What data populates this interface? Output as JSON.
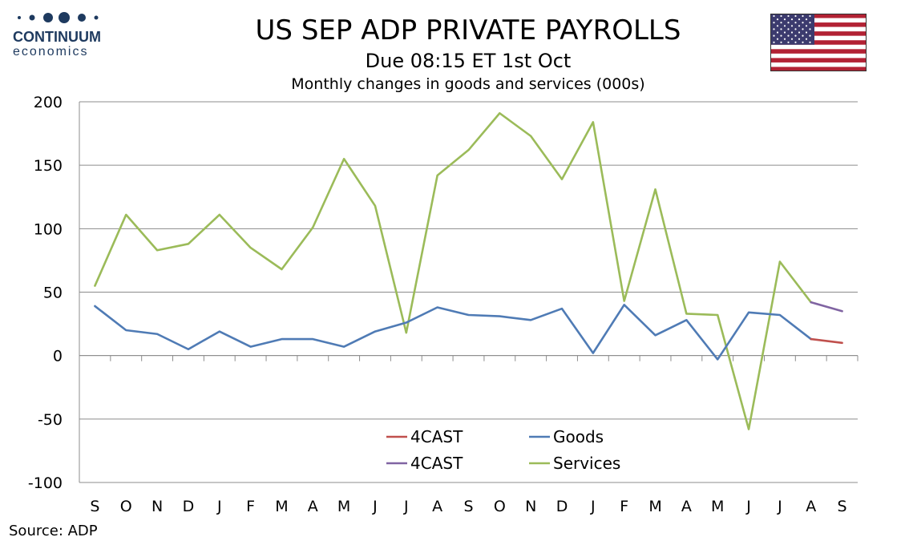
{
  "logo": {
    "brand": "CONTINUUM",
    "sub": "economics",
    "color": "#1e3a5f"
  },
  "header": {
    "title": "US SEP ADP PRIVATE PAYROLLS",
    "subtitle": "Due 08:15 ET 1st Oct",
    "subtitle2": "Monthly changes in goods and services (000s)"
  },
  "flag": {
    "icon": "us-flag-icon"
  },
  "source": "Source: ADP",
  "chart_data": {
    "type": "line",
    "categories": [
      "S",
      "O",
      "N",
      "D",
      "J",
      "F",
      "M",
      "A",
      "M",
      "J",
      "J",
      "A",
      "S",
      "O",
      "N",
      "D",
      "J",
      "F",
      "M",
      "A",
      "M",
      "J",
      "J",
      "A",
      "S"
    ],
    "ylim": [
      -100,
      200
    ],
    "yticks": [
      -100,
      -50,
      0,
      50,
      100,
      150,
      200
    ],
    "grid": true,
    "legend_position": "bottom-center",
    "series": [
      {
        "name": "Goods",
        "color": "#4f7bb5",
        "values": [
          39,
          20,
          17,
          5,
          19,
          7,
          13,
          13,
          7,
          19,
          26,
          38,
          32,
          31,
          28,
          37,
          2,
          40,
          16,
          28,
          -3,
          34,
          32,
          13,
          null
        ]
      },
      {
        "name": "Services",
        "color": "#9bbb59",
        "values": [
          55,
          111,
          83,
          88,
          111,
          85,
          68,
          101,
          155,
          118,
          18,
          142,
          162,
          191,
          173,
          139,
          184,
          43,
          131,
          33,
          32,
          -58,
          74,
          42,
          null
        ]
      },
      {
        "name": "4CAST",
        "color": "#c0504d",
        "values": [
          null,
          null,
          null,
          null,
          null,
          null,
          null,
          null,
          null,
          null,
          null,
          null,
          null,
          null,
          null,
          null,
          null,
          null,
          null,
          null,
          null,
          null,
          null,
          13,
          10
        ]
      },
      {
        "name": "4CAST",
        "color": "#8064a2",
        "values": [
          null,
          null,
          null,
          null,
          null,
          null,
          null,
          null,
          null,
          null,
          null,
          null,
          null,
          null,
          null,
          null,
          null,
          null,
          null,
          null,
          null,
          null,
          null,
          42,
          35
        ]
      }
    ],
    "legend": [
      {
        "label": "4CAST",
        "color": "#c0504d"
      },
      {
        "label": "Goods",
        "color": "#4f7bb5"
      },
      {
        "label": "4CAST",
        "color": "#8064a2"
      },
      {
        "label": "Services",
        "color": "#9bbb59"
      }
    ]
  }
}
